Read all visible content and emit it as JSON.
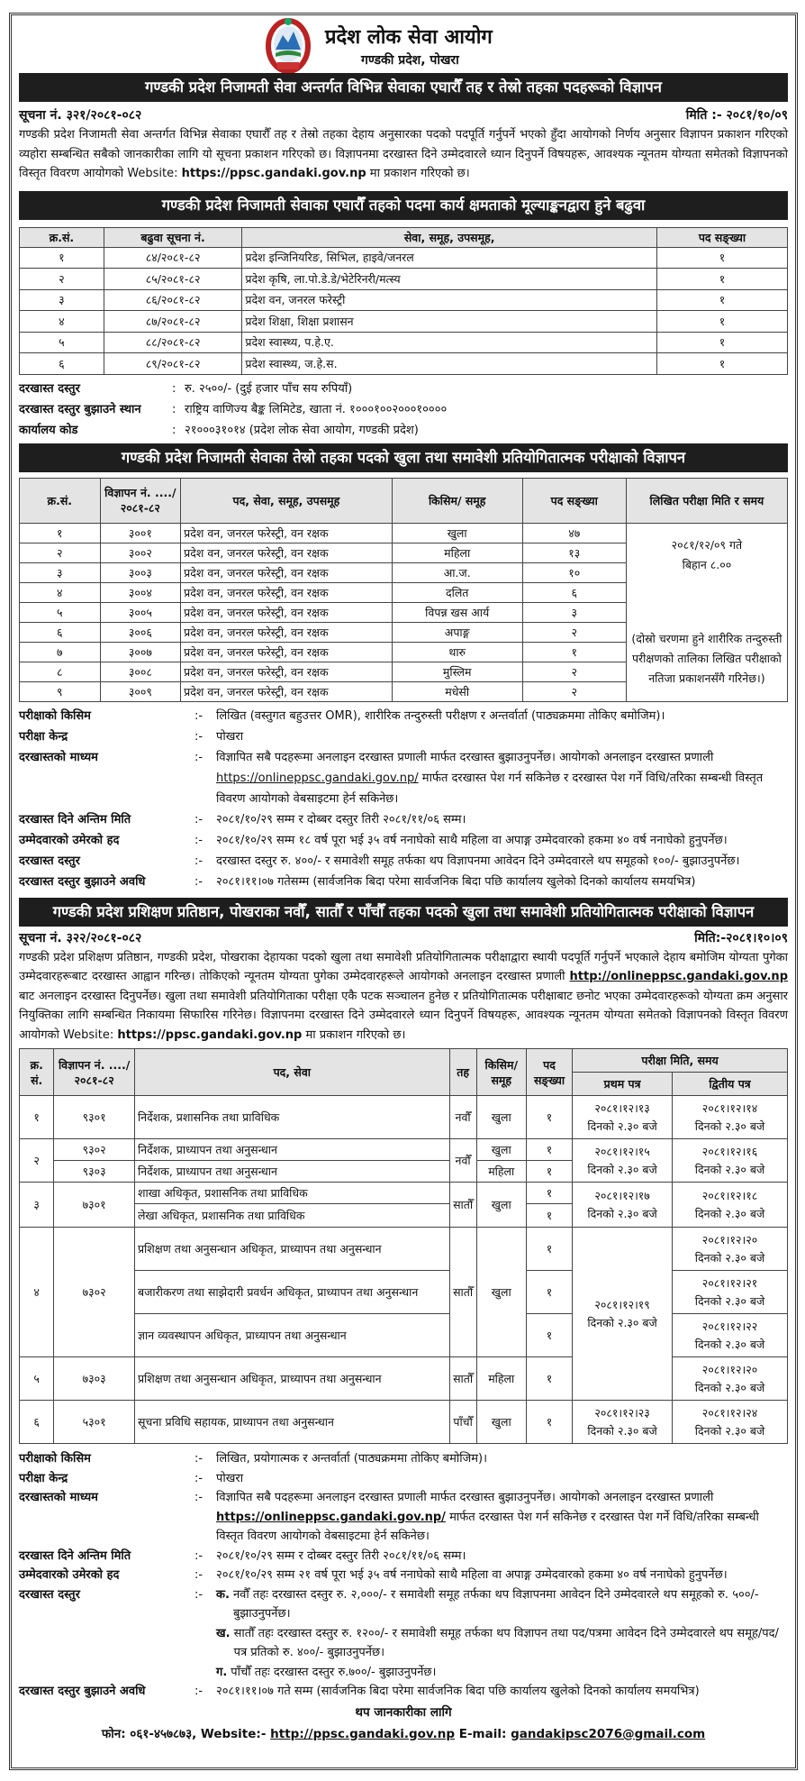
{
  "header": {
    "title": "प्रदेश लोक सेवा आयोग",
    "subtitle": "गण्डकी प्रदेश, पोखरा"
  },
  "s1": {
    "banner": "गण्डकी प्रदेश निजामती सेवा अन्तर्गत विभिन्न सेवाका एघारौँ तह र तेस्रो तहका पदहरूको विज्ञापन",
    "notice_no": "सूचना नं. ३२१/२०८१-०८२",
    "date": "मिति :- २०८१/१०/०९",
    "para": "गण्डकी प्रदेश निजामती सेवा अन्तर्गत विभिन्न सेवाका एघारौँ तह र तेस्रो तहका देहाय अनुसारका पदको पदपूर्ति गर्नुपर्ने भएको हुँदा आयोगको निर्णय अनुसार विज्ञापन प्रकाशन गरिएको व्यहोरा सम्बन्धित सबैको जानकारीका लागि यो सूचना प्रकाशन गरिएको छ। विज्ञापनमा दरखास्त दिने उम्मेदवारले ध्यान दिनुपर्ने विषयहरू, आवश्यक न्यूनतम योग्यता समेतको विज्ञापनको विस्तृत विवरण आयोगको Website:",
    "website": "https://ppsc.gandaki.gov.np",
    "para_end": "मा प्रकाशन गरिएको छ।"
  },
  "s2": {
    "banner": "गण्डकी प्रदेश निजामती सेवाका एघारौँ तहको पदमा कार्य क्षमताको मूल्याङ्कनद्वारा हुने बढुवा",
    "headers": [
      "क्र.सं.",
      "बढुवा सूचना नं.",
      "सेवा, समूह, उपसमूह,",
      "पद सङ्ख्या"
    ],
    "rows": [
      [
        "१",
        "८४/२०८१-८२",
        "प्रदेश इन्जिनियरिङ, सिभिल, हाइवे/जनरल",
        "१"
      ],
      [
        "२",
        "८५/२०८१-८२",
        "प्रदेश कृषि, ला.पो.डे.डे/भेटेरिनरी/मत्स्य",
        "१"
      ],
      [
        "३",
        "८६/२०८१-८२",
        "प्रदेश वन, जनरल फरेस्ट्री",
        "१"
      ],
      [
        "४",
        "८७/२०८१-८२",
        "प्रदेश शिक्षा, शिक्षा प्रशासन",
        "१"
      ],
      [
        "५",
        "८८/२०८१-८२",
        "प्रदेश स्वास्थ्य, प.हे.ए.",
        "१"
      ],
      [
        "६",
        "८९/२०८१-८२",
        "प्रदेश स्वास्थ्य, ज.हे.स.",
        "१"
      ]
    ],
    "info": [
      {
        "k": "दरखास्त दस्तुर",
        "v": "रु. २५००/- (दुई हजार पाँच सय रुपियाँ)"
      },
      {
        "k": "दरखास्त दस्तुर बुझाउने स्थान",
        "v": "राष्ट्रिय वाणिज्य बैङ्क लिमिटेड, खाता नं. १०००१००२०००१००००"
      },
      {
        "k": "कार्यालय कोड",
        "v": "२१०००३१०१४ (प्रदेश लोक सेवा आयोग, गण्डकी प्रदेश)"
      }
    ]
  },
  "s3": {
    "banner": "गण्डकी प्रदेश निजामती सेवाका तेस्रो तहका पदको खुला तथा समावेशी प्रतियोगितात्मक परीक्षाको विज्ञापन",
    "headers": [
      "क्र.सं.",
      "विज्ञापन नं. ..../२०८१-८२",
      "पद, सेवा, समूह, उपसमूह",
      "किसिम/ समूह",
      "पद सङ्ख्या",
      "लिखित परीक्षा मिति र समय"
    ],
    "rows": [
      [
        "१",
        "३००१",
        "प्रदेश वन, जनरल फरेस्ट्री, वन रक्षक",
        "खुला",
        "४७"
      ],
      [
        "२",
        "३००२",
        "प्रदेश वन, जनरल फरेस्ट्री, वन रक्षक",
        "महिला",
        "१३"
      ],
      [
        "३",
        "३००३",
        "प्रदेश वन, जनरल फरेस्ट्री, वन रक्षक",
        "आ.ज.",
        "१०"
      ],
      [
        "४",
        "३००४",
        "प्रदेश वन, जनरल फरेस्ट्री, वन रक्षक",
        "दलित",
        "६"
      ],
      [
        "५",
        "३००५",
        "प्रदेश वन, जनरल फरेस्ट्री, वन रक्षक",
        "विपन्न खस आर्य",
        "३"
      ],
      [
        "६",
        "३००६",
        "प्रदेश वन, जनरल फरेस्ट्री, वन रक्षक",
        "अपाङ्ग",
        "२"
      ],
      [
        "७",
        "३००७",
        "प्रदेश वन, जनरल फरेस्ट्री, वन रक्षक",
        "थारु",
        "१"
      ],
      [
        "८",
        "३००८",
        "प्रदेश वन, जनरल फरेस्ट्री, वन रक्षक",
        "मुस्लिम",
        "२"
      ],
      [
        "९",
        "३००९",
        "प्रदेश वन, जनरल फरेस्ट्री, वन रक्षक",
        "मधेसी",
        "२"
      ]
    ],
    "exam_date": "२०८१/१२/०९ गते",
    "exam_time": "बिहान ८.००",
    "exam_note": "(दोस्रो चरणमा हुने शारीरिक तन्दुरुस्ती परीक्षणको तालिका लिखित परीक्षाको नतिजा प्रकाशनसँगै गरिनेछ।)",
    "info": [
      {
        "k": "परीक्षाको किसिम",
        "v": "लिखित (वस्तुगत बहुउत्तर OMR), शारीरिक तन्दुरुस्ती परीक्षण र अन्तर्वार्ता (पाठ्यक्रममा तोकिए बमोजिम)।"
      },
      {
        "k": "परीक्षा केन्द्र",
        "v": "पोखरा"
      },
      {
        "k": "दरखास्तको माध्यम",
        "v": "विज्ञापित सबै पदहरूमा अनलाइन दरखास्त प्रणाली मार्फत दरखास्त बुझाउनुपर्नेछ। आयोगको अनलाइन दरखास्त प्रणाली",
        "link": "https://onlineppsc.gandaki.gov.np/",
        "v2": "मार्फत दरखास्त पेश गर्न सकिनेछ र दरखास्त पेश गर्ने विधि/तरिका सम्बन्धी विस्तृत विवरण आयोगको वेबसाइटमा हेर्न सकिनेछ।"
      },
      {
        "k": "दरखास्त दिने अन्तिम मिति",
        "v": "२०८१/१०/२९ सम्म र दोब्बर दस्तुर तिरी २०८१/११/०६ सम्म।"
      },
      {
        "k": "उम्मेदवारको उमेरको हद",
        "v": "२०८१/१०/२९ सम्म १८ वर्ष पूरा भई ३५ वर्ष ननाघेको साथै महिला वा अपाङ्ग उम्मेदवारको हकमा ४० वर्ष ननाघेको हुनुपर्नेछ।"
      },
      {
        "k": "दरखास्त दस्तुर",
        "v": "दरखास्त दस्तुर रु. ४००/- र समावेशी समूह तर्फका थप विज्ञापनमा आवेदन दिने उम्मेदवारले थप समूहको १००/- बुझाउनुपर्नेछ।"
      },
      {
        "k": "दरखास्त दस्तुर बुझाउने अवधि",
        "v": "२०८१।११।०७ गतेसम्म (सार्वजनिक बिदा परेमा सार्वजनिक बिदा पछि कार्यालय खुलेको दिनको कार्यालय समयभित्र)"
      }
    ]
  },
  "s4": {
    "banner": "गण्डकी प्रदेश प्रशिक्षण प्रतिष्ठान, पोखराका नवौँ, सातौँ र पाँचौँ तहका पदको खुला तथा समावेशी प्रतियोगितात्मक परीक्षाको विज्ञापन",
    "notice_no": "सूचना नं. ३२२/२०८१-०८२",
    "date": "मिति:-२०८१।१०।०९",
    "para": "गण्डकी प्रदेश प्रशिक्षण प्रतिष्ठान, गण्डकी प्रदेश, पोखराका देहायका पदको खुला तथा समावेशी प्रतियोगितात्मक परीक्षाद्वारा स्थायी पदपूर्ति गर्नुपर्ने भएकाले देहाय बमोजिम योग्यता पुगेका उम्मेदवारहरूबाट दरखास्त आह्वान गरिन्छ। तोकिएको न्यूनतम योग्यता पुगेका उम्मेदवारहरूले आयोगको अनलाइन दरखास्त प्रणाली",
    "link": "http://onlineppsc.gandaki.gov.np",
    "para2": "बाट अनलाइन दरखास्त दिनुपर्नेछ। खुला तथा समावेशी प्रतियोगिताका परीक्षा एकै पटक सञ्चालन हुनेछ र प्रतियोगितात्मक परीक्षाबाट छनोट भएका उम्मेदवारहरूको योग्यता क्रम अनुसार नियुक्तिका लागि सम्बन्धित निकायमा सिफारिस गरिनेछ। विज्ञापनमा दरखास्त दिने उम्मेदवारले ध्यान दिनुपर्ने विषयहरू, आवश्यक न्यूनतम योग्यता समेतको विज्ञापनको विस्तृत विवरण आयोगको Website:",
    "website": "https://ppsc.gandaki.gov.np",
    "para_end": "मा प्रकाशन गरिएको छ।",
    "headers": {
      "sn": "क्र. सं.",
      "ad": "विज्ञापन नं. ..../२०८१-८२",
      "post": "पद, सेवा",
      "level": "तह",
      "type": "किसिम/ समूह",
      "count": "पद सङ्ख्या",
      "exam": "परीक्षा मिति, समय",
      "p1": "प्रथम पत्र",
      "p2": "द्वितीय पत्र"
    },
    "time": "दिनको २.३० बजे",
    "rows": [
      {
        "sn": "१",
        "ad": "९३०१",
        "post": "निर्देशक, प्रशासनिक तथा प्राविधिक",
        "level": "नवौँ",
        "type": "खुला",
        "count": "१",
        "p1": "२०८१।१२।१३",
        "p2": "२०८१।१२।१४"
      },
      {
        "sn": "२",
        "ad": [
          "९३०२",
          "९३०३"
        ],
        "post": [
          "निर्देशक, प्राध्यापन तथा अनुसन्धान",
          "निर्देशक, प्राध्यापन तथा अनुसन्धान"
        ],
        "level": "नवौँ",
        "type": [
          "खुला",
          "महिला"
        ],
        "count": [
          "१",
          "१"
        ],
        "p1": "२०८१।१२।१५",
        "p2": "२०८१।१२।१६"
      },
      {
        "sn": "३",
        "ad": "७३०१",
        "post": [
          "शाखा अधिकृत, प्रशासनिक तथा प्राविधिक",
          "लेखा अधिकृत, प्रशासनिक तथा प्राविधिक"
        ],
        "level": "सातौँ",
        "type": "खुला",
        "count": [
          "१",
          "१"
        ],
        "p1": "२०८१।१२।१७",
        "p2": "२०८१।१२।१८"
      },
      {
        "sn": "४",
        "ad": "७३०२",
        "post": [
          "प्रशिक्षण तथा अनुसन्धान अधिकृत, प्राध्यापन तथा अनुसन्धान",
          "बजारीकरण तथा साझेदारी प्रवर्धन अधिकृत, प्राध्यापन तथा अनुसन्धान",
          "ज्ञान व्यवस्थापन अधिकृत, प्राध्यापन तथा अनुसन्धान"
        ],
        "level": "सातौँ",
        "type": "खुला",
        "count": [
          "१",
          "१",
          "१"
        ],
        "p1": "२०८१।१२।१९",
        "p2": [
          "२०८१।१२।२०",
          "२०८१।१२।२१",
          "२०८१।१२।२२"
        ]
      },
      {
        "sn": "५",
        "ad": "७३०३",
        "post": "प्रशिक्षण तथा अनुसन्धान अधिकृत, प्राध्यापन तथा अनुसन्धान",
        "level": "सातौँ",
        "type": "महिला",
        "count": "१",
        "p2": "२०८१।१२।२०"
      },
      {
        "sn": "६",
        "ad": "५३०१",
        "post": "सूचना प्रविधि सहायक, प्राध्यापन तथा अनुसन्धान",
        "level": "पाँचौँ",
        "type": "खुला",
        "count": "१",
        "p1": "२०८१।१२।२३",
        "p2": "२०८१।१२।२४"
      }
    ],
    "info": {
      "exam_type_k": "परीक्षाको किसिम",
      "exam_type_v": "लिखित, प्रयोगात्मक र अन्तर्वार्ता (पाठ्यक्रममा तोकिए बमोजिम)।",
      "center_k": "परीक्षा केन्द्र",
      "center_v": "पोखरा",
      "medium_k": "दरखास्तको माध्यम",
      "medium_v": "विज्ञापित सबै पदहरूमा अनलाइन दरखास्त प्रणाली मार्फत दरखास्त बुझाउनुपर्नेछ। आयोगको अनलाइन दरखास्त प्रणाली",
      "medium_link": "https://onlineppsc.gandaki.gov.np/",
      "medium_v2": "मार्फत दरखास्त पेश गर्न सकिनेछ र दरखास्त पेश गर्ने विधि/तरिका सम्बन्धी विस्तृत विवरण आयोगको वेबसाइटमा हेर्न सकिनेछ।",
      "deadline_k": "दरखास्त दिने अन्तिम मिति",
      "deadline_v": "२०८१/१०/२९ सम्म र दोब्बर दस्तुर तिरी २०८१/११/०६ सम्म।",
      "age_k": "उम्मेदवारको उमेरको हद",
      "age_v": "२०८१/१०/२९ सम्म २१ वर्ष पूरा भई ३५ वर्ष ननाघेको साथै महिला वा अपाङ्ग उम्मेदवारको हकमा ४० वर्ष ननाघेको हुनुपर्नेछ।",
      "fee_k": "दरखास्त दस्तुर",
      "fee_a_label": "क.",
      "fee_a": "नवौँ तहः दरखास्त दस्तुर रु. २,०००/- र समावेशी समूह तर्फका थप विज्ञापनमा आवेदन दिने उम्मेदवारले थप समूहको रु. ५००/- बुझाउनुपर्नेछ।",
      "fee_b_label": "ख.",
      "fee_b": "सातौँ तहः दरखास्त दस्तुर रु. १२००/- र समावेशी समूह तर्फका थप विज्ञापन तथा पद/पत्रमा आवेदन दिने उम्मेदवारले थप समूह/पद/पत्र प्रतिको रु. ४००/- बुझाउनुपर्नेछ।",
      "fee_c_label": "ग.",
      "fee_c": "पाँचौँ तहः दरखास्त दस्तुर रु.७००/- बुझाउनुपर्नेछ।",
      "period_k": "दरखास्त दस्तुर बुझाउने अवधि",
      "period_v": "२०८१।११।०७ गते सम्म (सार्वजनिक बिदा परेमा सार्वजनिक बिदा पछि कार्यालय खुलेको दिनको कार्यालय समयभित्र)"
    }
  },
  "footer": {
    "title": "थप जानकारीका लागि",
    "phone": "फोन: ०६१-४५७८७३, Website:-",
    "website": "http://ppsc.gandaki.gov.np",
    "email_label": "E-mail:",
    "email": "gandakipsc2076@gmail.com"
  },
  "colors": {
    "banner": "#1e1e1e",
    "header_bg": "#e4e4e4"
  }
}
